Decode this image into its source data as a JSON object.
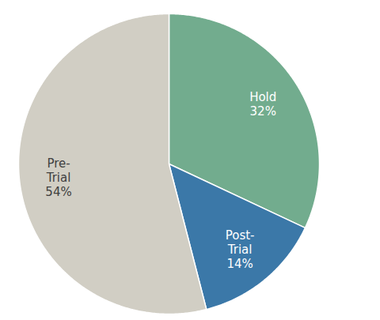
{
  "chart_data": {
    "type": "pie",
    "categories": [
      "Hold",
      "Post-Trial",
      "Pre-Trial"
    ],
    "values": [
      32,
      14,
      54
    ],
    "value_labels": [
      "32%",
      "14%",
      "54%"
    ],
    "colors": [
      "#72ac8e",
      "#3b78a8",
      "#d1cec4"
    ],
    "data_labels": true
  }
}
